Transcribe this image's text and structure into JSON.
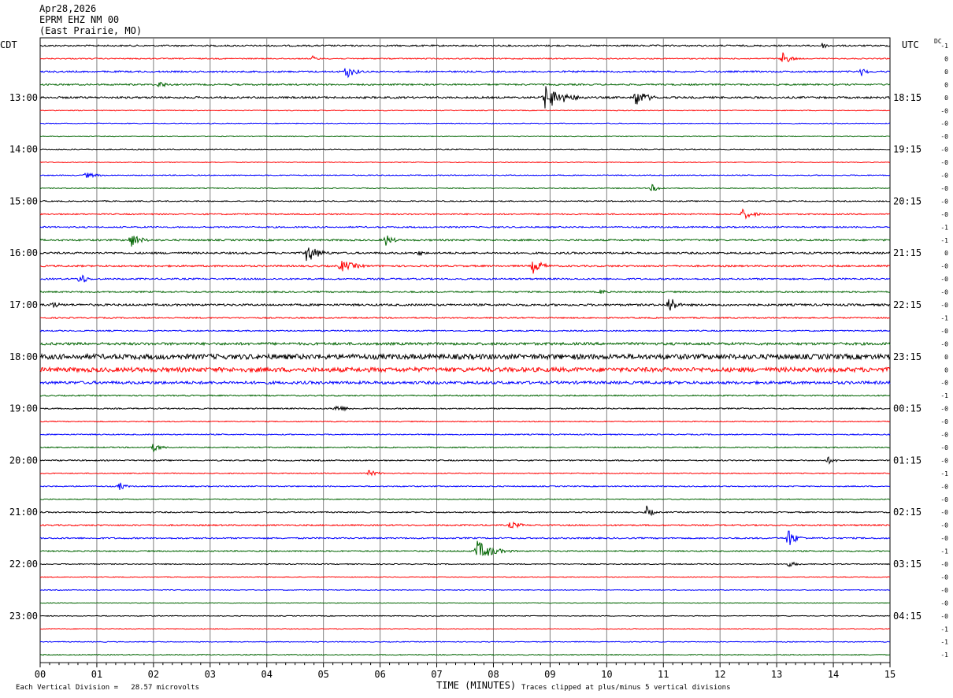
{
  "header": {
    "date": "Apr28,2026",
    "station": "EPRM EHZ NM 00",
    "location": "(East Prairie, MO)"
  },
  "left_timezone": "CDT",
  "right_timezone": "UTC",
  "dc_label": "DC",
  "footer": {
    "scale_note": "Each Vertical Division =   28.57 microvolts",
    "clip_note": "Traces clipped at plus/minus 5 vertical divisions",
    "x_title": "TIME (MINUTES)"
  },
  "colors": {
    "trace_cycle": [
      "#000000",
      "#ff0000",
      "#0000ff",
      "#006400"
    ],
    "grid": "#808080"
  },
  "chart_data": {
    "type": "line",
    "title": "",
    "xlabel": "TIME (MINUTES)",
    "x_ticks": [
      "00",
      "01",
      "02",
      "03",
      "04",
      "05",
      "06",
      "07",
      "08",
      "09",
      "10",
      "11",
      "12",
      "13",
      "14",
      "15"
    ],
    "xlim": [
      0,
      15
    ],
    "trace_count": 48,
    "left_time_labels": [
      {
        "trace": 4,
        "text": "13:00"
      },
      {
        "trace": 8,
        "text": "14:00"
      },
      {
        "trace": 12,
        "text": "15:00"
      },
      {
        "trace": 16,
        "text": "16:00"
      },
      {
        "trace": 20,
        "text": "17:00"
      },
      {
        "trace": 24,
        "text": "18:00"
      },
      {
        "trace": 28,
        "text": "19:00"
      },
      {
        "trace": 32,
        "text": "20:00"
      },
      {
        "trace": 36,
        "text": "21:00"
      },
      {
        "trace": 40,
        "text": "22:00"
      },
      {
        "trace": 44,
        "text": "23:00"
      }
    ],
    "right_time_labels": [
      {
        "trace": 4,
        "text": "18:15"
      },
      {
        "trace": 8,
        "text": "19:15"
      },
      {
        "trace": 12,
        "text": "20:15"
      },
      {
        "trace": 16,
        "text": "21:15"
      },
      {
        "trace": 20,
        "text": "22:15"
      },
      {
        "trace": 24,
        "text": "23:15"
      },
      {
        "trace": 28,
        "text": "00:15"
      },
      {
        "trace": 32,
        "text": "01:15"
      },
      {
        "trace": 36,
        "text": "02:15"
      },
      {
        "trace": 40,
        "text": "03:15"
      },
      {
        "trace": 44,
        "text": "04:15"
      }
    ],
    "dc_offsets": [
      "-1",
      "0",
      "0",
      "0",
      "0",
      "-0",
      "-0",
      "-0",
      "-0",
      "-0",
      "-0",
      "-0",
      "-0",
      "-0",
      "-1",
      "-1",
      "0",
      "-0",
      "-0",
      "-0",
      "-0",
      "-1",
      "-0",
      "-0",
      "0",
      "0",
      "-0",
      "-1",
      "-0",
      "-0",
      "-0",
      "-0",
      "-0",
      "-1",
      "-0",
      "-0",
      "-0",
      "-0",
      "-0",
      "-1",
      "-0",
      "-0",
      "-0",
      "-0",
      "-0",
      "-1",
      "-1",
      "-1"
    ],
    "noise_levels": [
      1,
      0.7,
      1,
      1,
      1.2,
      0.5,
      0.5,
      0.5,
      0.6,
      0.5,
      0.6,
      0.6,
      0.7,
      0.8,
      0.9,
      1.1,
      1.2,
      1.1,
      1,
      1,
      1.3,
      0.8,
      0.8,
      1.6,
      3.2,
      2.8,
      1.8,
      0.8,
      0.8,
      0.6,
      0.7,
      0.7,
      0.8,
      0.6,
      0.7,
      0.6,
      0.8,
      0.9,
      0.9,
      0.8,
      0.6,
      0.5,
      0.5,
      0.4,
      0.5,
      0.5,
      0.5,
      0.6
    ],
    "events": [
      {
        "trace": 0,
        "minute": 13.8,
        "amplitude": 4,
        "duration": 0.4
      },
      {
        "trace": 1,
        "minute": 4.8,
        "amplitude": 4,
        "duration": 0.3
      },
      {
        "trace": 1,
        "minute": 13.1,
        "amplitude": 9,
        "duration": 0.4
      },
      {
        "trace": 2,
        "minute": 5.4,
        "amplitude": 9,
        "duration": 0.5
      },
      {
        "trace": 2,
        "minute": 14.5,
        "amplitude": 6,
        "duration": 0.3
      },
      {
        "trace": 3,
        "minute": 2.1,
        "amplitude": 5,
        "duration": 0.4
      },
      {
        "trace": 4,
        "minute": 8.9,
        "amplitude": 16,
        "duration": 1.0
      },
      {
        "trace": 4,
        "minute": 10.5,
        "amplitude": 12,
        "duration": 0.6
      },
      {
        "trace": 10,
        "minute": 0.8,
        "amplitude": 4,
        "duration": 0.6
      },
      {
        "trace": 11,
        "minute": 10.8,
        "amplitude": 5,
        "duration": 0.4
      },
      {
        "trace": 13,
        "minute": 12.4,
        "amplitude": 7,
        "duration": 0.6
      },
      {
        "trace": 15,
        "minute": 1.6,
        "amplitude": 10,
        "duration": 0.5
      },
      {
        "trace": 15,
        "minute": 6.1,
        "amplitude": 8,
        "duration": 0.4
      },
      {
        "trace": 16,
        "minute": 4.7,
        "amplitude": 13,
        "duration": 0.6
      },
      {
        "trace": 16,
        "minute": 6.7,
        "amplitude": 5,
        "duration": 0.2
      },
      {
        "trace": 17,
        "minute": 5.3,
        "amplitude": 8,
        "duration": 0.8
      },
      {
        "trace": 17,
        "minute": 8.7,
        "amplitude": 10,
        "duration": 0.5
      },
      {
        "trace": 18,
        "minute": 0.7,
        "amplitude": 10,
        "duration": 0.3
      },
      {
        "trace": 19,
        "minute": 9.9,
        "amplitude": 4,
        "duration": 0.3
      },
      {
        "trace": 20,
        "minute": 11.1,
        "amplitude": 16,
        "duration": 0.3
      },
      {
        "trace": 20,
        "minute": 0.2,
        "amplitude": 5,
        "duration": 0.5
      },
      {
        "trace": 28,
        "minute": 5.2,
        "amplitude": 5,
        "duration": 0.7
      },
      {
        "trace": 31,
        "minute": 2.0,
        "amplitude": 6,
        "duration": 0.4
      },
      {
        "trace": 32,
        "minute": 13.9,
        "amplitude": 5,
        "duration": 0.4
      },
      {
        "trace": 33,
        "minute": 5.8,
        "amplitude": 4,
        "duration": 0.6
      },
      {
        "trace": 34,
        "minute": 1.4,
        "amplitude": 6,
        "duration": 0.3
      },
      {
        "trace": 36,
        "minute": 10.7,
        "amplitude": 9,
        "duration": 0.3
      },
      {
        "trace": 37,
        "minute": 8.3,
        "amplitude": 5,
        "duration": 0.6
      },
      {
        "trace": 38,
        "minute": 13.2,
        "amplitude": 13,
        "duration": 0.4
      },
      {
        "trace": 39,
        "minute": 7.7,
        "amplitude": 14,
        "duration": 0.8
      },
      {
        "trace": 40,
        "minute": 13.2,
        "amplitude": 4,
        "duration": 0.5
      }
    ]
  }
}
